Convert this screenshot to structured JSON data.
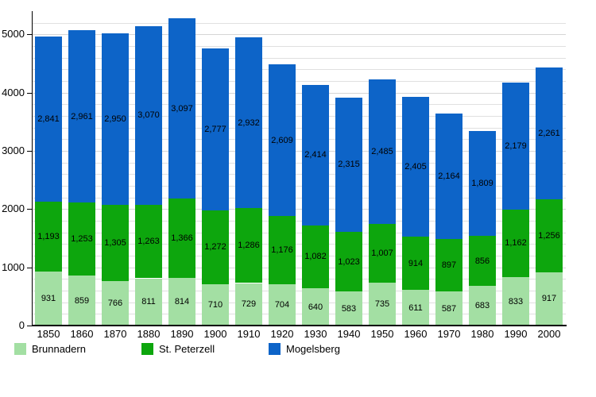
{
  "chart_data": {
    "type": "bar",
    "stacked": true,
    "title": "",
    "xlabel": "",
    "ylabel": "",
    "categories": [
      "1850",
      "1860",
      "1870",
      "1880",
      "1890",
      "1900",
      "1910",
      "1920",
      "1930",
      "1940",
      "1950",
      "1960",
      "1970",
      "1980",
      "1990",
      "2000"
    ],
    "series": [
      {
        "name": "Brunnadern",
        "color": "#a3dfa3",
        "values": [
          931,
          859,
          766,
          811,
          814,
          710,
          729,
          704,
          640,
          583,
          735,
          611,
          587,
          683,
          833,
          917
        ]
      },
      {
        "name": "St. Peterzell",
        "color": "#0da60d",
        "values": [
          1193,
          1253,
          1305,
          1263,
          1366,
          1272,
          1286,
          1176,
          1082,
          1023,
          1007,
          914,
          897,
          856,
          1162,
          1256
        ]
      },
      {
        "name": "Mogelsberg",
        "color": "#0d64c8",
        "values": [
          2841,
          2961,
          2950,
          3070,
          3097,
          2777,
          2932,
          2609,
          2414,
          2315,
          2485,
          2405,
          2164,
          1809,
          2179,
          2261
        ]
      }
    ],
    "totals": [
      4965,
      5073,
      5021,
      5144,
      5277,
      4759,
      4947,
      4489,
      4136,
      3921,
      4227,
      3930,
      3648,
      3348,
      4174,
      4434
    ],
    "ylim": [
      0,
      5400
    ],
    "yticks": [
      0,
      1000,
      2000,
      3000,
      4000,
      5000
    ],
    "minor_grid_interval": 200,
    "grid": true,
    "value_labels": "comma-separated, centered in each segment",
    "legend_position": "bottom",
    "legend": {
      "items": [
        {
          "label": "Brunnadern",
          "color": "#a3dfa3"
        },
        {
          "label": "St. Peterzell",
          "color": "#0da60d"
        },
        {
          "label": "Mogelsberg",
          "color": "#0d64c8"
        }
      ]
    }
  }
}
